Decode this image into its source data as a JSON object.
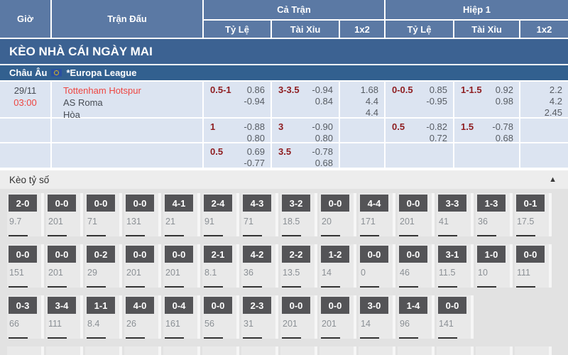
{
  "header": {
    "col_time": "Giờ",
    "col_match": "Trận Đấu",
    "group_full": "Cả Trận",
    "group_half": "Hiệp 1",
    "sub_hdp": "Tỷ Lệ",
    "sub_ou": "Tài Xỉu",
    "sub_1x2": "1x2"
  },
  "banner": {
    "title": "KÈO NHÀ CÁI NGÀY MAI"
  },
  "league": {
    "region": "Châu Âu",
    "flag_icon": "eu-flag-icon",
    "name": "*Europa League"
  },
  "match": {
    "date": "29/11",
    "time": "03:00",
    "home": "Tottenham Hotspur",
    "away": "AS Roma",
    "draw_label": "Hòa",
    "rows": [
      {
        "ft_hdp": {
          "line": "0.5-1",
          "odds": [
            "0.86",
            "-0.94"
          ]
        },
        "ft_ou": {
          "line": "3-3.5",
          "odds": [
            "-0.94",
            "0.84"
          ]
        },
        "ft_1x2": {
          "line": "",
          "odds": [
            "1.68",
            "4.4",
            "4.4"
          ]
        },
        "h1_hdp": {
          "line": "0-0.5",
          "odds": [
            "0.85",
            "-0.95"
          ]
        },
        "h1_ou": {
          "line": "1-1.5",
          "odds": [
            "0.92",
            "0.98"
          ]
        },
        "h1_1x2": {
          "line": "",
          "odds": [
            "2.2",
            "4.2",
            "2.45"
          ]
        }
      },
      {
        "ft_hdp": {
          "line": "1",
          "odds": [
            "-0.88",
            "0.80"
          ]
        },
        "ft_ou": {
          "line": "3",
          "odds": [
            "-0.90",
            "0.80"
          ]
        },
        "ft_1x2": {
          "line": "",
          "odds": []
        },
        "h1_hdp": {
          "line": "0.5",
          "odds": [
            "-0.82",
            "0.72"
          ]
        },
        "h1_ou": {
          "line": "1.5",
          "odds": [
            "-0.78",
            "0.68"
          ]
        },
        "h1_1x2": {
          "line": "",
          "odds": []
        }
      },
      {
        "ft_hdp": {
          "line": "0.5",
          "odds": [
            "0.69",
            "-0.77"
          ]
        },
        "ft_ou": {
          "line": "3.5",
          "odds": [
            "-0.78",
            "0.68"
          ]
        },
        "ft_1x2": {
          "line": "",
          "odds": []
        },
        "h1_hdp": {
          "line": "",
          "odds": []
        },
        "h1_ou": {
          "line": "",
          "odds": []
        },
        "h1_1x2": {
          "line": "",
          "odds": []
        }
      }
    ]
  },
  "correct_score": {
    "title": "Kèo tỷ số",
    "collapse_icon": "▲",
    "rows": [
      [
        {
          "score": "2-0",
          "odds": "9.7"
        },
        {
          "score": "0-0",
          "odds": "201"
        },
        {
          "score": "0-0",
          "odds": "71"
        },
        {
          "score": "0-0",
          "odds": "131"
        },
        {
          "score": "4-1",
          "odds": "21"
        },
        {
          "score": "2-4",
          "odds": "91"
        },
        {
          "score": "4-3",
          "odds": "71"
        },
        {
          "score": "3-2",
          "odds": "18.5"
        },
        {
          "score": "0-0",
          "odds": "20"
        },
        {
          "score": "4-4",
          "odds": "171"
        },
        {
          "score": "0-0",
          "odds": "201"
        },
        {
          "score": "3-3",
          "odds": "41"
        },
        {
          "score": "1-3",
          "odds": "36"
        },
        {
          "score": "0-1",
          "odds": "17.5"
        }
      ],
      [
        {
          "score": "0-0",
          "odds": "151"
        },
        {
          "score": "0-0",
          "odds": "201"
        },
        {
          "score": "0-2",
          "odds": "29"
        },
        {
          "score": "0-0",
          "odds": "201"
        },
        {
          "score": "0-0",
          "odds": "201"
        },
        {
          "score": "2-1",
          "odds": "8.1"
        },
        {
          "score": "4-2",
          "odds": "36"
        },
        {
          "score": "2-2",
          "odds": "13.5"
        },
        {
          "score": "1-2",
          "odds": "14"
        },
        {
          "score": "0-0",
          "odds": "0"
        },
        {
          "score": "0-0",
          "odds": "46"
        },
        {
          "score": "3-1",
          "odds": "11.5"
        },
        {
          "score": "1-0",
          "odds": "10"
        },
        {
          "score": "0-0",
          "odds": "111"
        }
      ],
      [
        {
          "score": "0-3",
          "odds": "66"
        },
        {
          "score": "3-4",
          "odds": "111"
        },
        {
          "score": "1-1",
          "odds": "8.4"
        },
        {
          "score": "4-0",
          "odds": "26"
        },
        {
          "score": "0-4",
          "odds": "161"
        },
        {
          "score": "0-0",
          "odds": "56"
        },
        {
          "score": "2-3",
          "odds": "31"
        },
        {
          "score": "0-0",
          "odds": "201"
        },
        {
          "score": "0-0",
          "odds": "201"
        },
        {
          "score": "3-0",
          "odds": "14"
        },
        {
          "score": "1-4",
          "odds": "96"
        },
        {
          "score": "0-0",
          "odds": "141"
        }
      ]
    ]
  },
  "colors": {
    "header_bg": "#5b79a4",
    "banner_bg": "#3c6292",
    "league_bg": "#32608f",
    "row_bg": "#dce4f1",
    "accent_red": "#ee4540",
    "handicap_maroon": "#8e1c1f",
    "score_box": "#545457",
    "section_bg": "#e2e2e2"
  }
}
